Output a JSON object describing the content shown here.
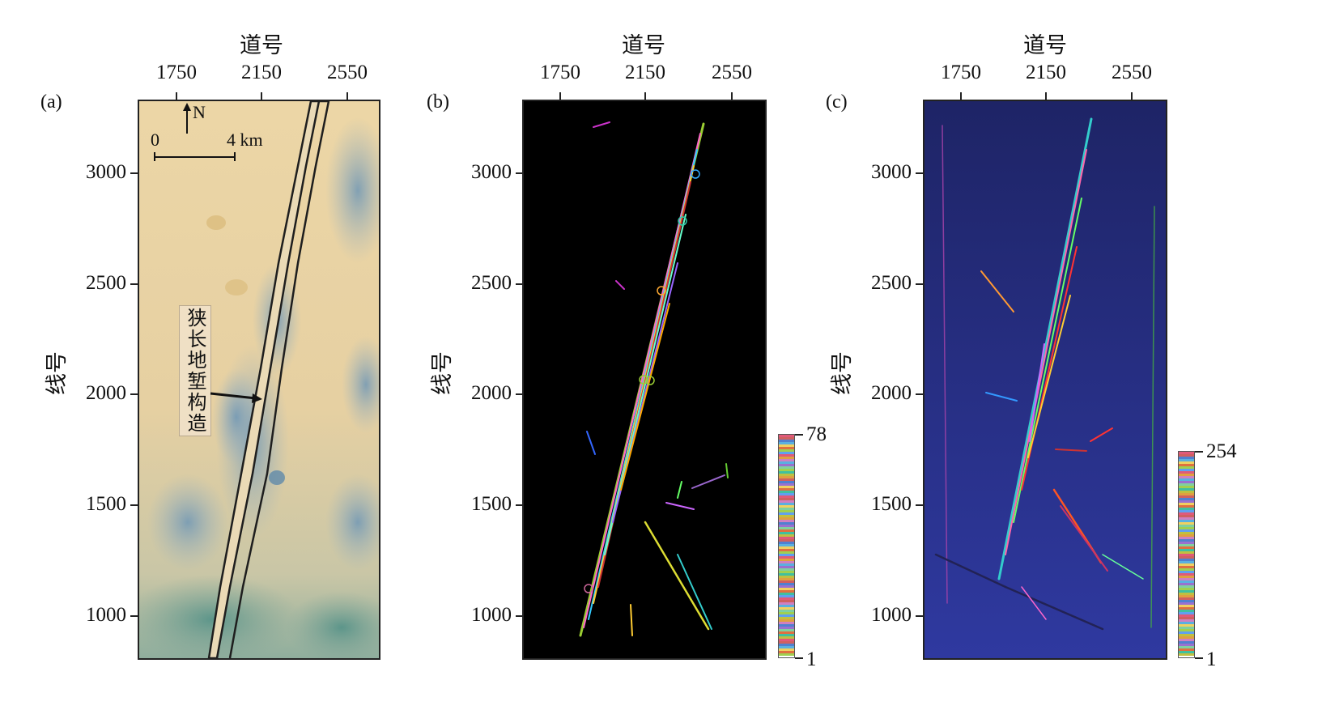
{
  "panels": [
    {
      "label": "(a)",
      "x_axis_title": "道号",
      "x_ticks": [
        "1750",
        "2150",
        "2550"
      ],
      "y_axis_title": "线号",
      "y_ticks": [
        "3000",
        "2500",
        "2000",
        "1500",
        "1000"
      ],
      "north_label": "N",
      "scale_bar": {
        "start": "0",
        "end": "4 km"
      },
      "annotation": "狭长地堑构造"
    },
    {
      "label": "(b)",
      "x_axis_title": "道号",
      "x_ticks": [
        "1750",
        "2150",
        "2550"
      ],
      "y_axis_title": "线号",
      "y_ticks": [
        "3000",
        "2500",
        "2000",
        "1500",
        "1000"
      ],
      "colorbar": {
        "max": "78",
        "min": "1"
      }
    },
    {
      "label": "(c)",
      "x_axis_title": "道号",
      "x_ticks": [
        "1750",
        "2150",
        "2550"
      ],
      "y_axis_title": "线号",
      "y_ticks": [
        "3000",
        "2500",
        "2000",
        "1500",
        "1000"
      ],
      "colorbar": {
        "max": "254",
        "min": "1"
      }
    }
  ],
  "colors": {
    "panel_b_background": "#000000",
    "panel_c_background": "#2a2f8a",
    "map_light": "#e9d3a2",
    "map_blue": "#6f97b6",
    "graben_outline": "#1e1e1e"
  }
}
